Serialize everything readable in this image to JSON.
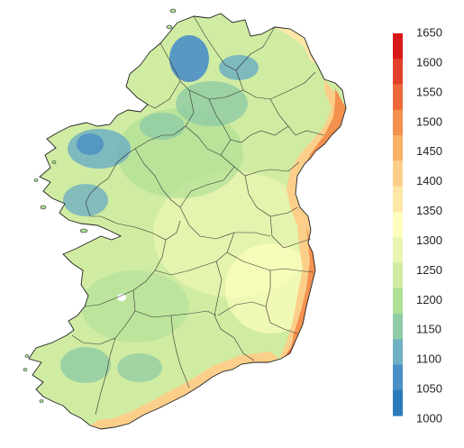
{
  "legend": {
    "ticks": [
      "1650",
      "1600",
      "1550",
      "1500",
      "1450",
      "1400",
      "1350",
      "1300",
      "1250",
      "1200",
      "1150",
      "1100",
      "1050",
      "1000"
    ],
    "colors": [
      "#d7191c",
      "#e2402a",
      "#ec6a3a",
      "#f4914e",
      "#f9b168",
      "#fbcf8a",
      "#fde6a6",
      "#fefebe",
      "#e9f5b0",
      "#d0eca2",
      "#b0e097",
      "#8fcba4",
      "#6fb0c2",
      "#4a8fc6",
      "#2b7bba"
    ]
  },
  "chart_data": {
    "type": "heatmap",
    "title": "",
    "colorbar": {
      "min": 1000,
      "max": 1650,
      "step": 50,
      "ticks": [
        1000,
        1050,
        1100,
        1150,
        1200,
        1250,
        1300,
        1350,
        1400,
        1450,
        1500,
        1550,
        1600,
        1650
      ]
    }
  }
}
